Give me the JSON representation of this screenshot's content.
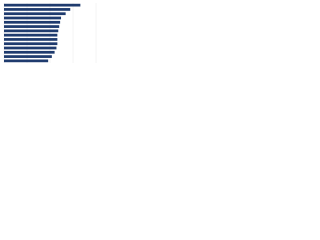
{
  "chart_data": {
    "type": "barh",
    "categories": [
      null,
      null,
      null,
      null,
      null,
      null,
      null,
      null,
      null,
      null,
      null,
      null,
      null,
      null
    ],
    "values": [
      83,
      72,
      67,
      62,
      61,
      60,
      59,
      58,
      58,
      58,
      57,
      55,
      52,
      48
    ],
    "color": "#1f3b6e",
    "xlim": [
      0,
      100
    ],
    "grid": true
  }
}
